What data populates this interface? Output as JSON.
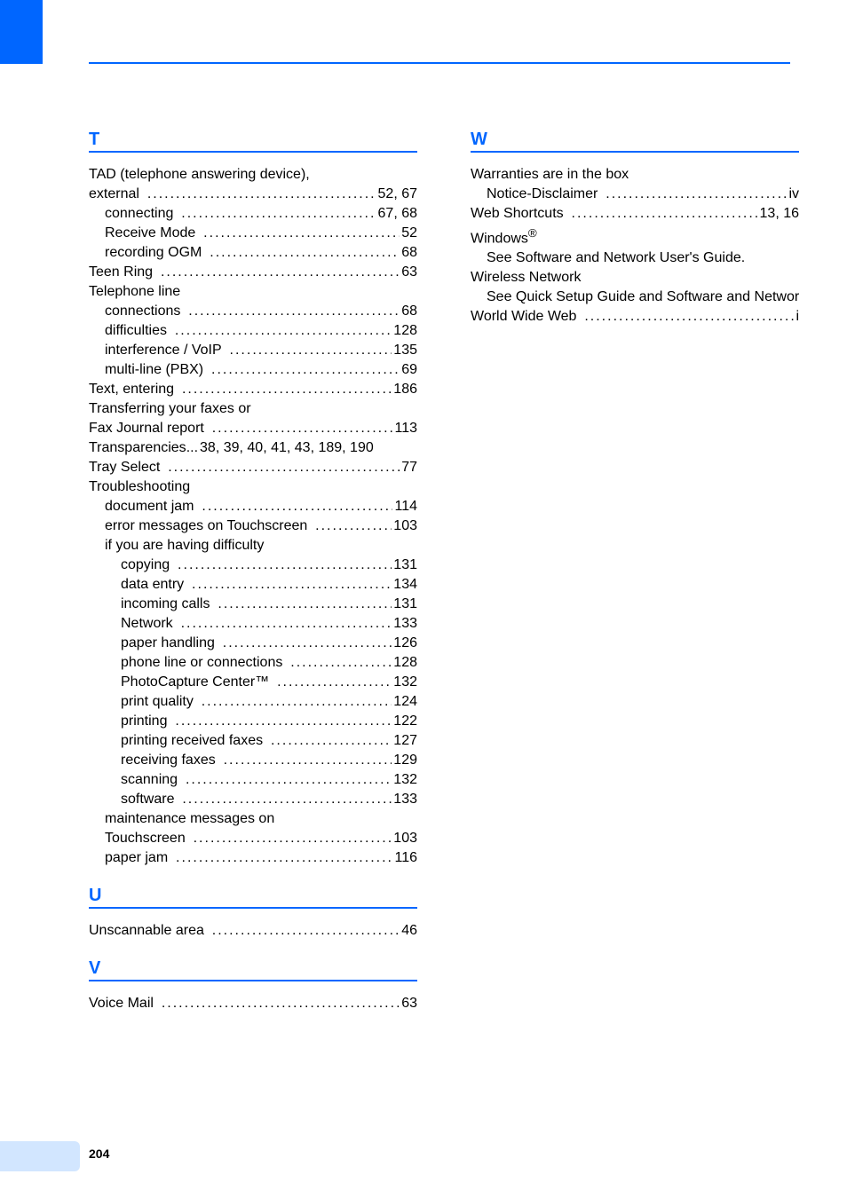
{
  "page_number": "204",
  "colors": {
    "accent": "#0066ff",
    "text": "#000000",
    "page_tab_bg": "#d2e6ff",
    "background": "#ffffff"
  },
  "typography": {
    "body_fontsize": 16,
    "heading_fontsize": 20,
    "pagenum_fontsize": 14,
    "line_height": 22,
    "font_family": "Arial"
  },
  "left_col": {
    "T": {
      "letter": "T",
      "entries": [
        {
          "label": "TAD (telephone answering device),",
          "indent": 0,
          "page": null,
          "nodots": true
        },
        {
          "label": "external",
          "indent": 0,
          "page": "52, 67"
        },
        {
          "label": "connecting",
          "indent": 1,
          "page": "67, 68"
        },
        {
          "label": "Receive Mode",
          "indent": 1,
          "page": "52"
        },
        {
          "label": "recording OGM",
          "indent": 1,
          "page": "68"
        },
        {
          "label": "Teen Ring",
          "indent": 0,
          "page": "63"
        },
        {
          "label": "Telephone line",
          "indent": 0,
          "page": null,
          "nodots": true
        },
        {
          "label": "connections",
          "indent": 1,
          "page": "68"
        },
        {
          "label": "difficulties",
          "indent": 1,
          "page": "128"
        },
        {
          "label": "interference / VoIP",
          "indent": 1,
          "page": "135"
        },
        {
          "label": "multi-line (PBX)",
          "indent": 1,
          "page": "69"
        },
        {
          "label": "Text, entering",
          "indent": 0,
          "page": "186"
        },
        {
          "label": "Transferring your faxes or",
          "indent": 0,
          "page": null,
          "nodots": true
        },
        {
          "label": "Fax Journal report",
          "indent": 0,
          "page": "113"
        },
        {
          "label": "Transparencies",
          "indent": 0,
          "page": "38, 39, 40, 41, 43, 189, 190",
          "tight": true
        },
        {
          "label": "Tray Select",
          "indent": 0,
          "page": "77"
        },
        {
          "label": "Troubleshooting",
          "indent": 0,
          "page": null,
          "nodots": true
        },
        {
          "label": "document jam",
          "indent": 1,
          "page": "114"
        },
        {
          "label": "error messages on Touchscreen",
          "indent": 1,
          "page": "103"
        },
        {
          "label": "if you are having difficulty",
          "indent": 1,
          "page": null,
          "nodots": true
        },
        {
          "label": "copying",
          "indent": 2,
          "page": "131"
        },
        {
          "label": "data entry",
          "indent": 2,
          "page": "134"
        },
        {
          "label": "incoming calls",
          "indent": 2,
          "page": "131"
        },
        {
          "label": "Network",
          "indent": 2,
          "page": "133"
        },
        {
          "label": "paper handling",
          "indent": 2,
          "page": "126"
        },
        {
          "label": "phone line or connections",
          "indent": 2,
          "page": "128"
        },
        {
          "label": "PhotoCapture Center™",
          "indent": 2,
          "page": "132"
        },
        {
          "label": "print quality",
          "indent": 2,
          "page": "124"
        },
        {
          "label": "printing",
          "indent": 2,
          "page": "122"
        },
        {
          "label": "printing received faxes",
          "indent": 2,
          "page": "127"
        },
        {
          "label": "receiving faxes",
          "indent": 2,
          "page": "129"
        },
        {
          "label": "scanning",
          "indent": 2,
          "page": "132"
        },
        {
          "label": "software",
          "indent": 2,
          "page": "133"
        },
        {
          "label": "maintenance messages on",
          "indent": 1,
          "page": null,
          "nodots": true
        },
        {
          "label": "Touchscreen",
          "indent": 1,
          "page": "103"
        },
        {
          "label": "paper jam",
          "indent": 1,
          "page": "116"
        }
      ]
    },
    "U": {
      "letter": "U",
      "entries": [
        {
          "label": "Unscannable area",
          "indent": 0,
          "page": "46"
        }
      ]
    },
    "V": {
      "letter": "V",
      "entries": [
        {
          "label": "Voice Mail",
          "indent": 0,
          "page": "63"
        }
      ]
    }
  },
  "right_col": {
    "W": {
      "letter": "W",
      "entries": [
        {
          "label": "Warranties are in the box",
          "indent": 0,
          "page": null,
          "nodots": true
        },
        {
          "label": "Notice-Disclaimer",
          "indent": 1,
          "page": "iv"
        },
        {
          "label": "Web Shortcuts",
          "indent": 0,
          "page": "13, 16"
        },
        {
          "label_html": "Windows<sup>®</sup>",
          "indent": 0,
          "page": null,
          "nodots": true
        },
        {
          "label": "See Software and Network User's Guide.",
          "indent": 1,
          "page": null,
          "nodots": true
        },
        {
          "label": "Wireless Network",
          "indent": 0,
          "page": null,
          "nodots": true
        },
        {
          "label": "See Quick Setup Guide and Software and Network User's Guide.",
          "indent": 1,
          "page": null,
          "nodots": true,
          "wrap": true
        },
        {
          "label": "World Wide Web",
          "indent": 0,
          "page": "i"
        }
      ]
    }
  }
}
